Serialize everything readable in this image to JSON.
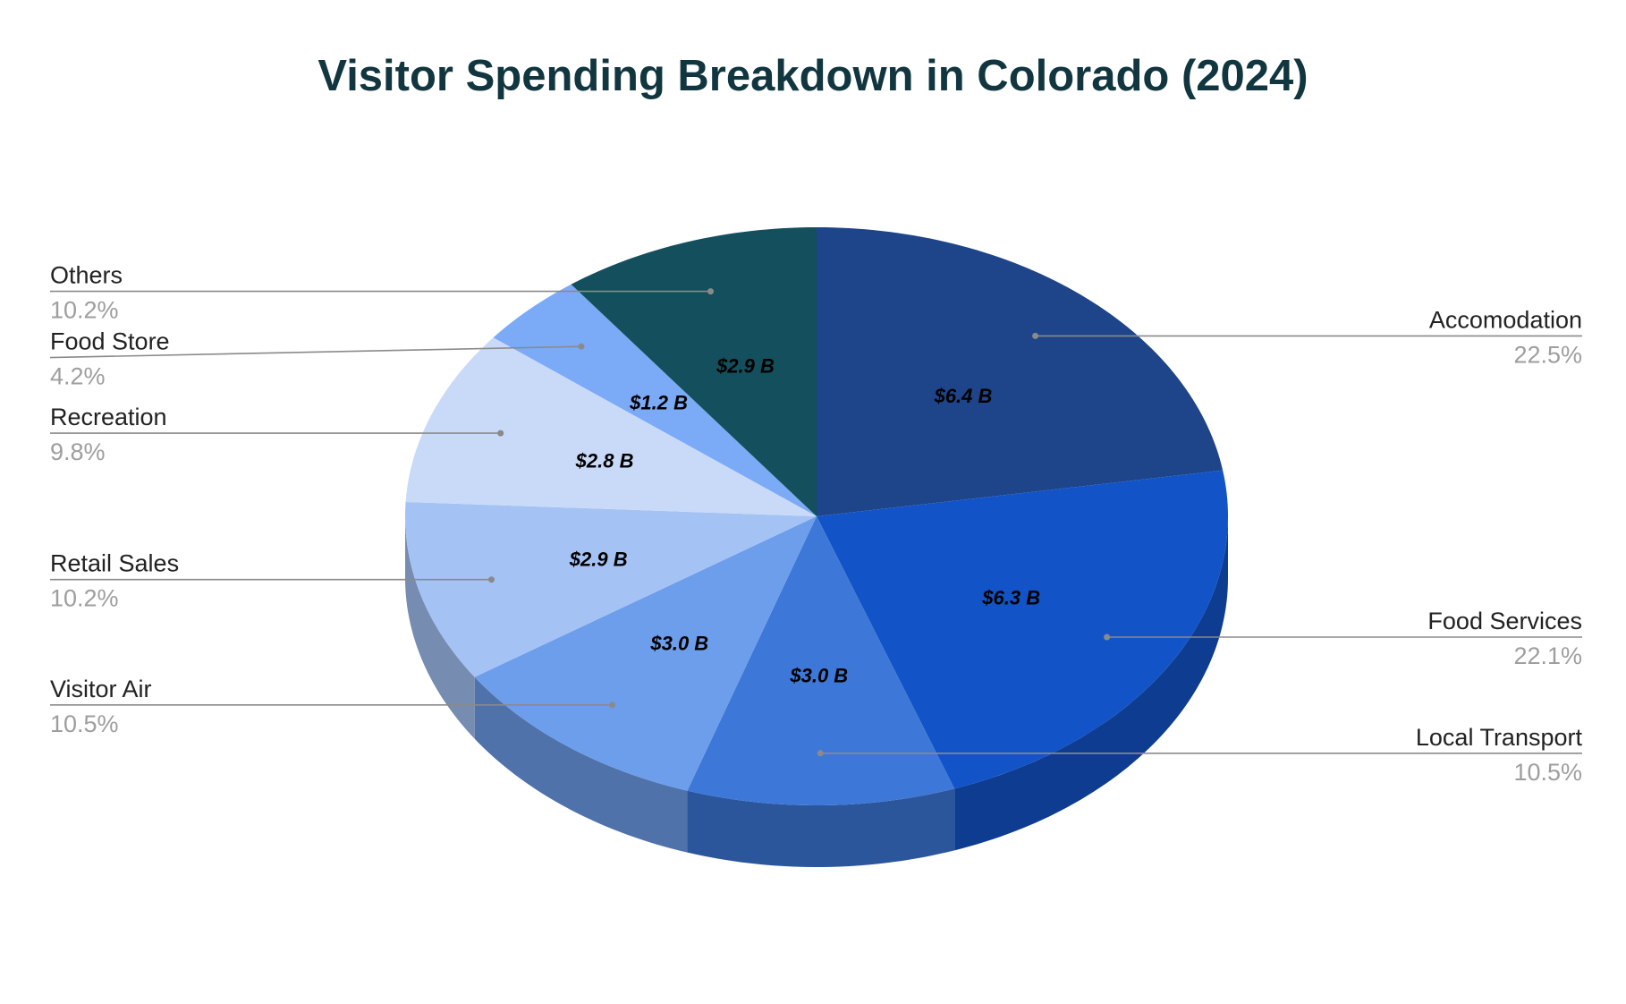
{
  "chart_data": {
    "type": "pie",
    "style": "3d",
    "title": "Visitor Spending Breakdown in Colorado (2024)",
    "value_unit": "$ B",
    "slices": [
      {
        "name": "Accomodation",
        "value": 6.4,
        "label": "$6.4 B",
        "percent": 22.5,
        "percent_label": "22.5%",
        "color": "#1e4489",
        "side": "right"
      },
      {
        "name": "Food Services",
        "value": 6.3,
        "label": "$6.3 B",
        "percent": 22.1,
        "percent_label": "22.1%",
        "color": "#1254c8",
        "side": "right"
      },
      {
        "name": "Local Transport",
        "value": 3.0,
        "label": "$3.0 B",
        "percent": 10.5,
        "percent_label": "10.5%",
        "color": "#3d78d8",
        "side": "right"
      },
      {
        "name": "Visitor Air",
        "value": 3.0,
        "label": "$3.0 B",
        "percent": 10.5,
        "percent_label": "10.5%",
        "color": "#6d9eeb",
        "side": "left"
      },
      {
        "name": "Retail Sales",
        "value": 2.9,
        "label": "$2.9 B",
        "percent": 10.2,
        "percent_label": "10.2%",
        "color": "#a4c2f4",
        "side": "left"
      },
      {
        "name": "Recreation",
        "value": 2.8,
        "label": "$2.8 B",
        "percent": 9.8,
        "percent_label": "9.8%",
        "color": "#c9daf8",
        "side": "left"
      },
      {
        "name": "Food Store",
        "value": 1.2,
        "label": "$1.2 B",
        "percent": 4.2,
        "percent_label": "4.2%",
        "color": "#7baaf7",
        "side": "left"
      },
      {
        "name": "Others",
        "value": 2.9,
        "label": "$2.9 B",
        "percent": 10.2,
        "percent_label": "10.2%",
        "color": "#134f5c",
        "side": "left"
      }
    ],
    "colors": {
      "title": "#11363f",
      "leader_line": "#8a8a8a",
      "legend_name": "#222222",
      "legend_percent": "#9e9e9e",
      "slice_label": "#000000"
    }
  }
}
